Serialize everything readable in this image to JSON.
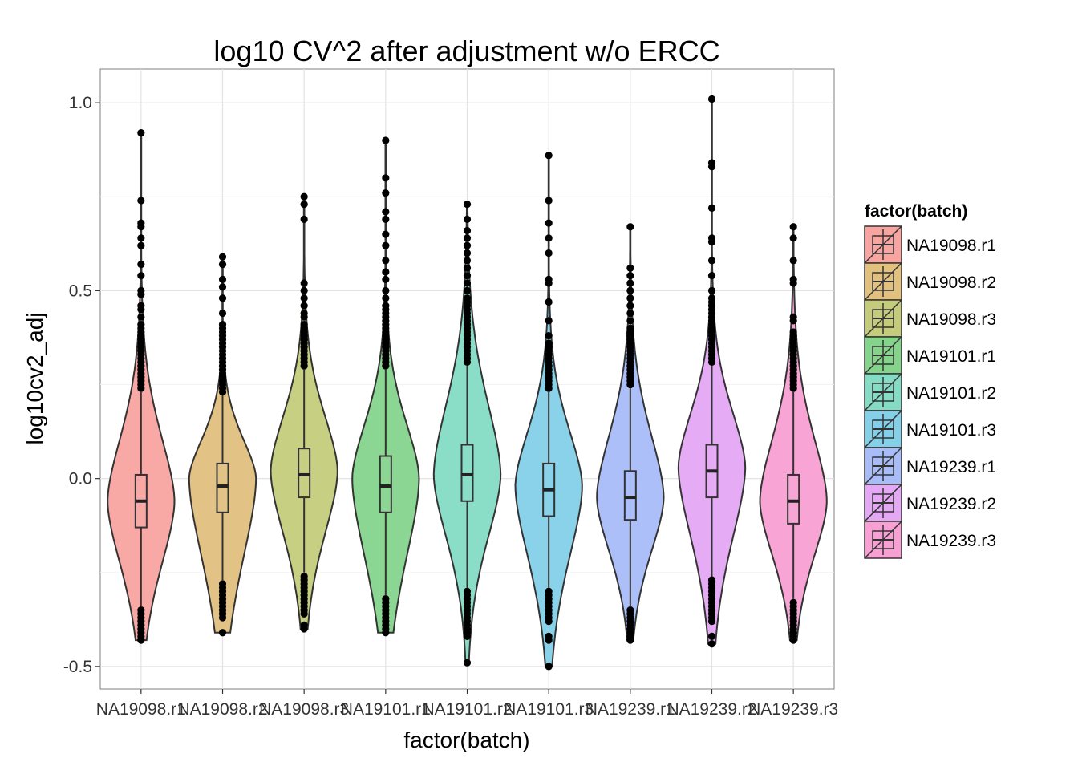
{
  "chart_data": {
    "type": "violin",
    "title": "log10 CV^2 after adjustment w/o ERCC",
    "xlabel": "factor(batch)",
    "ylabel": "log10cv2_adj",
    "ylim": [
      -0.56,
      1.09
    ],
    "yticks": [
      -0.5,
      0.0,
      0.5,
      1.0
    ],
    "ytick_labels": [
      "-0.5",
      "0.0",
      "0.5",
      "1.0"
    ],
    "grid": true,
    "legend": {
      "title": "factor(batch)",
      "placement": "right"
    },
    "categories": [
      "NA19098.r1",
      "NA19098.r2",
      "NA19098.r3",
      "NA19101.r1",
      "NA19101.r2",
      "NA19101.r3",
      "NA19239.r1",
      "NA19239.r2",
      "NA19239.r3"
    ],
    "colors": [
      "#f8a4a0",
      "#e2c07e",
      "#c4cc7c",
      "#84d48c",
      "#84dcc4",
      "#84d0e8",
      "#a8bcf8",
      "#e4a8f4",
      "#f8a0d4"
    ],
    "series": [
      {
        "q1": -0.13,
        "median": -0.06,
        "q3": 0.01,
        "whisker_low": -0.34,
        "whisker_high": 0.23,
        "width_peak_y": -0.06,
        "outliers_high": [
          0.92,
          0.74,
          0.68,
          0.67,
          0.64,
          0.62,
          0.57,
          0.54,
          0.5,
          0.49,
          0.46,
          0.45,
          0.43,
          0.41,
          0.4,
          0.39,
          0.38,
          0.37,
          0.36,
          0.35,
          0.34,
          0.33,
          0.32,
          0.31,
          0.3,
          0.29,
          0.28,
          0.27,
          0.26,
          0.25,
          0.24
        ],
        "outliers_low": [
          -0.35,
          -0.36,
          -0.37,
          -0.38,
          -0.39,
          -0.4,
          -0.41,
          -0.42,
          -0.43
        ]
      },
      {
        "q1": -0.09,
        "median": -0.02,
        "q3": 0.04,
        "whisker_low": -0.27,
        "whisker_high": 0.22,
        "width_peak_y": 0.0,
        "outliers_high": [
          0.59,
          0.57,
          0.53,
          0.51,
          0.48,
          0.44,
          0.41,
          0.4,
          0.39,
          0.38,
          0.37,
          0.36,
          0.35,
          0.34,
          0.33,
          0.32,
          0.31,
          0.3,
          0.29,
          0.28,
          0.27,
          0.26,
          0.25,
          0.24,
          0.23
        ],
        "outliers_low": [
          -0.28,
          -0.29,
          -0.3,
          -0.31,
          -0.32,
          -0.33,
          -0.34,
          -0.35,
          -0.36,
          -0.37,
          -0.41
        ]
      },
      {
        "q1": -0.05,
        "median": 0.01,
        "q3": 0.08,
        "whisker_low": -0.25,
        "whisker_high": 0.29,
        "width_peak_y": 0.02,
        "outliers_high": [
          0.75,
          0.73,
          0.69,
          0.52,
          0.5,
          0.48,
          0.46,
          0.44,
          0.43,
          0.41,
          0.4,
          0.39,
          0.38,
          0.37,
          0.36,
          0.35,
          0.34,
          0.33,
          0.32,
          0.31,
          0.3
        ],
        "outliers_low": [
          -0.26,
          -0.27,
          -0.28,
          -0.29,
          -0.3,
          -0.31,
          -0.32,
          -0.33,
          -0.34,
          -0.35,
          -0.36,
          -0.39,
          -0.4
        ]
      },
      {
        "q1": -0.09,
        "median": -0.02,
        "q3": 0.06,
        "whisker_low": -0.31,
        "whisker_high": 0.29,
        "width_peak_y": 0.0,
        "outliers_high": [
          0.9,
          0.8,
          0.76,
          0.71,
          0.69,
          0.65,
          0.62,
          0.58,
          0.55,
          0.53,
          0.5,
          0.48,
          0.46,
          0.45,
          0.44,
          0.43,
          0.42,
          0.41,
          0.4,
          0.39,
          0.38,
          0.37,
          0.36,
          0.35,
          0.34,
          0.33,
          0.32,
          0.31,
          0.3
        ],
        "outliers_low": [
          -0.32,
          -0.33,
          -0.34,
          -0.35,
          -0.36,
          -0.37,
          -0.38,
          -0.39,
          -0.4,
          -0.41
        ]
      },
      {
        "q1": -0.06,
        "median": 0.01,
        "q3": 0.09,
        "whisker_low": -0.29,
        "whisker_high": 0.3,
        "width_peak_y": 0.01,
        "outliers_high": [
          0.73,
          0.69,
          0.66,
          0.64,
          0.62,
          0.6,
          0.58,
          0.56,
          0.54,
          0.52,
          0.5,
          0.48,
          0.47,
          0.46,
          0.45,
          0.44,
          0.43,
          0.42,
          0.41,
          0.4,
          0.39,
          0.38,
          0.37,
          0.36,
          0.35,
          0.34,
          0.33,
          0.32,
          0.31
        ],
        "outliers_low": [
          -0.3,
          -0.31,
          -0.32,
          -0.33,
          -0.34,
          -0.35,
          -0.36,
          -0.37,
          -0.38,
          -0.39,
          -0.4,
          -0.41,
          -0.42,
          -0.49
        ]
      },
      {
        "q1": -0.1,
        "median": -0.03,
        "q3": 0.04,
        "whisker_low": -0.29,
        "whisker_high": 0.23,
        "width_peak_y": -0.02,
        "outliers_high": [
          0.86,
          0.74,
          0.68,
          0.64,
          0.6,
          0.53,
          0.52,
          0.47,
          0.42,
          0.38,
          0.36,
          0.35,
          0.34,
          0.33,
          0.32,
          0.31,
          0.3,
          0.29,
          0.28,
          0.27,
          0.26,
          0.25,
          0.24
        ],
        "outliers_low": [
          -0.3,
          -0.31,
          -0.32,
          -0.33,
          -0.34,
          -0.35,
          -0.36,
          -0.37,
          -0.38,
          -0.42,
          -0.43,
          -0.5
        ]
      },
      {
        "q1": -0.11,
        "median": -0.05,
        "q3": 0.02,
        "whisker_low": -0.34,
        "whisker_high": 0.24,
        "width_peak_y": -0.05,
        "outliers_high": [
          0.67,
          0.56,
          0.54,
          0.52,
          0.5,
          0.48,
          0.46,
          0.44,
          0.42,
          0.4,
          0.39,
          0.38,
          0.37,
          0.36,
          0.35,
          0.34,
          0.33,
          0.32,
          0.31,
          0.3,
          0.29,
          0.28,
          0.27,
          0.26,
          0.25
        ],
        "outliers_low": [
          -0.35,
          -0.36,
          -0.37,
          -0.38,
          -0.39,
          -0.4,
          -0.41,
          -0.42,
          -0.43
        ]
      },
      {
        "q1": -0.05,
        "median": 0.02,
        "q3": 0.09,
        "whisker_low": -0.26,
        "whisker_high": 0.3,
        "width_peak_y": 0.03,
        "outliers_high": [
          1.01,
          0.84,
          0.83,
          0.72,
          0.64,
          0.63,
          0.58,
          0.54,
          0.5,
          0.48,
          0.47,
          0.46,
          0.45,
          0.44,
          0.43,
          0.42,
          0.41,
          0.4,
          0.39,
          0.38,
          0.37,
          0.36,
          0.35,
          0.34,
          0.33,
          0.32,
          0.31
        ],
        "outliers_low": [
          -0.27,
          -0.28,
          -0.29,
          -0.3,
          -0.31,
          -0.32,
          -0.33,
          -0.34,
          -0.35,
          -0.36,
          -0.37,
          -0.38,
          -0.42,
          -0.44
        ]
      },
      {
        "q1": -0.12,
        "median": -0.06,
        "q3": 0.01,
        "whisker_low": -0.32,
        "whisker_high": 0.23,
        "width_peak_y": -0.06,
        "outliers_high": [
          0.67,
          0.64,
          0.58,
          0.53,
          0.52,
          0.43,
          0.42,
          0.39,
          0.38,
          0.37,
          0.36,
          0.35,
          0.34,
          0.33,
          0.32,
          0.31,
          0.3,
          0.29,
          0.28,
          0.27,
          0.26,
          0.25,
          0.24
        ],
        "outliers_low": [
          -0.33,
          -0.34,
          -0.35,
          -0.36,
          -0.37,
          -0.38,
          -0.39,
          -0.4,
          -0.41,
          -0.42,
          -0.43
        ]
      }
    ]
  }
}
